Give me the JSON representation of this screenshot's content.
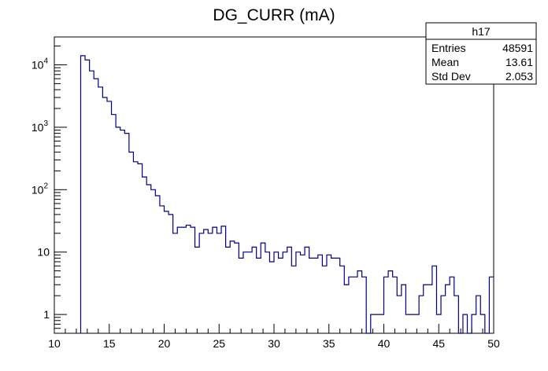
{
  "chart_data": {
    "type": "histogram",
    "title": "DG_CURR (mA)",
    "xlabel": "",
    "ylabel": "",
    "xlim": [
      10,
      50
    ],
    "ylim": [
      0.5,
      28000
    ],
    "y_scale": "log",
    "grid": false,
    "bin_width": 0.4,
    "x_ticks": [
      "10",
      "15",
      "20",
      "25",
      "30",
      "35",
      "40",
      "45",
      "50"
    ],
    "y_ticks": [
      {
        "value": 1,
        "base": "1",
        "exp": ""
      },
      {
        "value": 10,
        "base": "10",
        "exp": ""
      },
      {
        "value": 100,
        "base": "10",
        "exp": "2"
      },
      {
        "value": 1000,
        "base": "10",
        "exp": "3"
      },
      {
        "value": 10000,
        "base": "10",
        "exp": "4"
      }
    ],
    "bins": [
      {
        "x": 12.4,
        "y": 14000
      },
      {
        "x": 12.8,
        "y": 12000
      },
      {
        "x": 13.2,
        "y": 8000
      },
      {
        "x": 13.6,
        "y": 6000
      },
      {
        "x": 14.0,
        "y": 4400
      },
      {
        "x": 14.4,
        "y": 3000
      },
      {
        "x": 14.8,
        "y": 2600
      },
      {
        "x": 15.2,
        "y": 1600
      },
      {
        "x": 15.6,
        "y": 1000
      },
      {
        "x": 16.0,
        "y": 900
      },
      {
        "x": 16.4,
        "y": 800
      },
      {
        "x": 16.8,
        "y": 400
      },
      {
        "x": 17.2,
        "y": 280
      },
      {
        "x": 17.6,
        "y": 260
      },
      {
        "x": 18.0,
        "y": 160
      },
      {
        "x": 18.4,
        "y": 120
      },
      {
        "x": 18.8,
        "y": 100
      },
      {
        "x": 19.2,
        "y": 80
      },
      {
        "x": 19.6,
        "y": 55
      },
      {
        "x": 20.0,
        "y": 45
      },
      {
        "x": 20.4,
        "y": 40
      },
      {
        "x": 20.8,
        "y": 20
      },
      {
        "x": 21.2,
        "y": 25
      },
      {
        "x": 21.6,
        "y": 25
      },
      {
        "x": 22.0,
        "y": 27
      },
      {
        "x": 22.4,
        "y": 25
      },
      {
        "x": 22.8,
        "y": 12
      },
      {
        "x": 23.2,
        "y": 20
      },
      {
        "x": 23.6,
        "y": 23
      },
      {
        "x": 24.0,
        "y": 20
      },
      {
        "x": 24.4,
        "y": 25
      },
      {
        "x": 24.8,
        "y": 20
      },
      {
        "x": 25.2,
        "y": 26
      },
      {
        "x": 25.6,
        "y": 12
      },
      {
        "x": 26.0,
        "y": 15
      },
      {
        "x": 26.4,
        "y": 14
      },
      {
        "x": 26.8,
        "y": 8
      },
      {
        "x": 27.2,
        "y": 10
      },
      {
        "x": 27.6,
        "y": 10
      },
      {
        "x": 28.0,
        "y": 12
      },
      {
        "x": 28.4,
        "y": 8
      },
      {
        "x": 28.8,
        "y": 14
      },
      {
        "x": 29.2,
        "y": 10
      },
      {
        "x": 29.6,
        "y": 7
      },
      {
        "x": 30.0,
        "y": 10
      },
      {
        "x": 30.4,
        "y": 8
      },
      {
        "x": 30.8,
        "y": 10
      },
      {
        "x": 31.2,
        "y": 12
      },
      {
        "x": 31.6,
        "y": 6
      },
      {
        "x": 32.0,
        "y": 10
      },
      {
        "x": 32.4,
        "y": 9
      },
      {
        "x": 32.8,
        "y": 12
      },
      {
        "x": 33.2,
        "y": 8
      },
      {
        "x": 33.6,
        "y": 8
      },
      {
        "x": 34.0,
        "y": 9
      },
      {
        "x": 34.4,
        "y": 6
      },
      {
        "x": 34.8,
        "y": 9
      },
      {
        "x": 35.2,
        "y": 8
      },
      {
        "x": 35.6,
        "y": 8
      },
      {
        "x": 36.0,
        "y": 6
      },
      {
        "x": 36.4,
        "y": 3
      },
      {
        "x": 36.8,
        "y": 4
      },
      {
        "x": 37.2,
        "y": 4
      },
      {
        "x": 37.6,
        "y": 5
      },
      {
        "x": 38.0,
        "y": 4
      },
      {
        "x": 38.4,
        "y": 0
      },
      {
        "x": 38.8,
        "y": 1
      },
      {
        "x": 39.2,
        "y": 1
      },
      {
        "x": 39.6,
        "y": 1
      },
      {
        "x": 40.0,
        "y": 4
      },
      {
        "x": 40.4,
        "y": 5
      },
      {
        "x": 40.8,
        "y": 4
      },
      {
        "x": 41.2,
        "y": 2
      },
      {
        "x": 41.6,
        "y": 3
      },
      {
        "x": 42.0,
        "y": 1
      },
      {
        "x": 42.4,
        "y": 1
      },
      {
        "x": 42.8,
        "y": 1
      },
      {
        "x": 43.2,
        "y": 2
      },
      {
        "x": 43.6,
        "y": 3
      },
      {
        "x": 44.0,
        "y": 3
      },
      {
        "x": 44.4,
        "y": 6
      },
      {
        "x": 44.8,
        "y": 1
      },
      {
        "x": 45.2,
        "y": 2
      },
      {
        "x": 45.6,
        "y": 3
      },
      {
        "x": 46.0,
        "y": 4
      },
      {
        "x": 46.4,
        "y": 2
      },
      {
        "x": 46.8,
        "y": 0
      },
      {
        "x": 47.2,
        "y": 1
      },
      {
        "x": 47.6,
        "y": 0
      },
      {
        "x": 48.0,
        "y": 1
      },
      {
        "x": 48.4,
        "y": 2
      },
      {
        "x": 48.8,
        "y": 1
      },
      {
        "x": 49.2,
        "y": 0
      },
      {
        "x": 49.6,
        "y": 4
      }
    ],
    "line_color": "#000080",
    "stats": {
      "name": "h17",
      "rows": [
        {
          "label": "Entries",
          "value": "48591"
        },
        {
          "label": "Mean",
          "value": "13.61"
        },
        {
          "label": "Std Dev",
          "value": "2.053"
        }
      ]
    }
  }
}
